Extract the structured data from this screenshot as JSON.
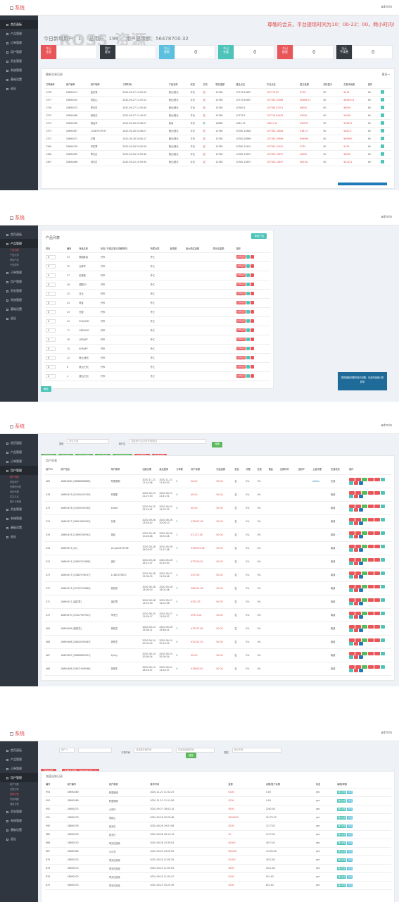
{
  "app": {
    "brand": "系统",
    "user": "admin"
  },
  "watermark": "ROSS 资源",
  "sidebar1": [
    {
      "label": "首页面板"
    },
    {
      "label": "产品管理"
    },
    {
      "label": "订单管理"
    },
    {
      "label": "用户管理"
    },
    {
      "label": "资金管理"
    },
    {
      "label": "系统管理"
    },
    {
      "label": "基础设置"
    },
    {
      "label": "退出"
    }
  ],
  "dashboard": {
    "notice": "尊敬的会员，平台提现时间为10：00-22：00，两小时内!",
    "summary": "今日新增用户：1     总用户：199     用户总余额：56478700.32",
    "stats": [
      {
        "label": "今日\n注册",
        "value": ""
      },
      {
        "label": "用户\n提交",
        "value": ""
      },
      {
        "label": "今日\n提款",
        "value": "0"
      },
      {
        "label": "今日\n充值",
        "value": "0"
      },
      {
        "label": "今日\n提现",
        "value": "0"
      },
      {
        "label": "当天\n手续费",
        "value": "0"
      }
    ],
    "panel_title": "最新交易记录",
    "more": "更多→",
    "columns": [
      "订单编号",
      "用户编号",
      "用户昵称",
      "订单时间",
      "产品名称",
      "状态",
      "方向",
      "购买金额",
      "建仓点位",
      "平仓点位",
      "盈亏金额",
      "实际盈亏",
      "交易手续费",
      "操作"
    ],
    "rows": [
      [
        "1378",
        "18690471",
        "金红秀",
        "2020-09-27 12:00:34",
        "美元/港元",
        "平仓",
        "涨",
        "10780",
        "10775.91667",
        "107770.65",
        "¥276",
        "¥0",
        "¥276",
        "¥0"
      ],
      [
        "1377",
        "18690454",
        "何民山",
        "2020-09-27 11:55:12",
        "美元/港元",
        "平仓",
        "涨",
        "10780",
        "10770.91667",
        "107780.10068",
        "¥6489.01",
        "¥0",
        "¥6489.01",
        "¥0"
      ],
      [
        "1376",
        "18690473",
        "李天白",
        "2020-09-27 11:50:40",
        "美元/港元",
        "平仓",
        "涨",
        "10780",
        "10780.5",
        "107780.03101",
        "¥6000",
        "¥0",
        "¥6000",
        "¥0"
      ],
      [
        "1375",
        "18690468",
        "张世达",
        "2020-09-27 11:45:02",
        "美元/港元",
        "平仓",
        "涨",
        "10780",
        "10779.5",
        "107779.94493",
        "¥5000",
        "¥0",
        "¥5000",
        "¥0"
      ],
      [
        "1374",
        "18690458",
        "杨运华",
        "2020-09-26 20:06:27",
        "原油",
        "平仓",
        "跌",
        "10880",
        "1081.13",
        "10811.13",
        "¥90871",
        "¥0",
        "¥90871",
        "¥0"
      ],
      [
        "1373",
        "18690467",
        "11887070537",
        "2020-09-26 20:06:27",
        "美元/港元",
        "平仓",
        "涨",
        "10780",
        "10780.14684",
        "107780.14684",
        "¥481.9",
        "¥0",
        "¥481.9",
        "¥0"
      ],
      [
        "1372",
        "18690471",
        "王明",
        "2020-09-26 20:00:17",
        "美元/港元",
        "平仓",
        "涨",
        "10780",
        "10780.29989",
        "107780.29989",
        "¥99990",
        "¥0",
        "¥99990",
        "¥0"
      ],
      [
        "1369",
        "18690476",
        "邓红秀",
        "2020-09-26 20:00:26",
        "美元/港元",
        "平仓",
        "涨",
        "10780",
        "10780.12401",
        "107780.12401",
        "¥230",
        "¥0",
        "¥230",
        "¥0"
      ],
      [
        "1368",
        "18690469",
        "李天白",
        "2020-09-26 19:59:46",
        "美元/港元",
        "平仓",
        "涨",
        "10780",
        "10780.13697",
        "107780.13697",
        "¥6000",
        "¥0",
        "¥6000",
        "¥0"
      ],
      [
        "1367",
        "18690466",
        "何天白",
        "2020-09-25 19:59:30",
        "美元/港元",
        "平仓",
        "涨",
        "10780",
        "10780.13697",
        "107780.13697",
        "¥61321",
        "¥0",
        "¥61321",
        "¥0"
      ]
    ]
  },
  "products": {
    "panel_title": "产品列表",
    "add_button": "添加产品",
    "submit_button": "确定",
    "columns": [
      "排序",
      "编号",
      "商品名称",
      "状态 (不是正常日流程的时)",
      "所属分类",
      "最低额",
      "最大购买金额",
      "周计量金额",
      "操作"
    ],
    "rows": [
      {
        "sort": "0",
        "id": "33",
        "name": "美国原油",
        "status": "开市",
        "cat": "外汇"
      },
      {
        "sort": "0",
        "id": "32",
        "name": "比特币",
        "status": "开市",
        "cat": "外汇"
      },
      {
        "sort": "0",
        "id": "27",
        "name": "伦敦镍",
        "status": "开市",
        "cat": "外汇"
      },
      {
        "sort": "0",
        "id": "26",
        "name": "德国30",
        "status": "开市",
        "cat": "外汇"
      },
      {
        "sort": "7",
        "id": "25",
        "name": "日元",
        "status": "开市",
        "cat": "外汇"
      },
      {
        "sort": "0",
        "id": "24",
        "name": "黄金",
        "status": "开市",
        "cat": "外汇"
      },
      {
        "sort": "0",
        "id": "23",
        "name": "白银",
        "status": "开市",
        "cat": "外汇"
      },
      {
        "sort": "0",
        "id": "19",
        "name": "EUR/USD",
        "status": "开市",
        "cat": "外汇"
      },
      {
        "sort": "0",
        "id": "17",
        "name": "GBP/USD",
        "status": "开市",
        "cat": "外汇"
      },
      {
        "sort": "0",
        "id": "16",
        "name": "USD/JPY",
        "status": "开市",
        "cat": "外汇"
      },
      {
        "sort": "0",
        "id": "15",
        "name": "EUR/JPY",
        "status": "开市",
        "cat": "外汇"
      },
      {
        "sort": "0",
        "id": "12",
        "name": "美元/港元",
        "status": "开市",
        "cat": "外汇"
      },
      {
        "sort": "0",
        "id": "6",
        "name": "美元/日元",
        "status": "开市",
        "cat": "外汇"
      },
      {
        "sort": "0",
        "id": "4",
        "name": "澳元/日元",
        "status": "开市",
        "cat": "外汇"
      }
    ],
    "row_actions": [
      "全部设置",
      "编",
      "删"
    ],
    "popup": "您的授权到期时间已到期，请及时续费以防影响"
  },
  "users": {
    "filter_label": "类别",
    "filter_value": "默认不选",
    "search_label": "用户名",
    "search_placeholder": "请按用户名/手机号/登录名",
    "search_button": "搜索",
    "toolbar": [
      "添加用户",
      "添加账户",
      "添加代理商",
      "今日新增",
      "今日在线用户",
      "批量删除",
      "批量拉黑"
    ],
    "panel_title": "用户列表",
    "columns": [
      "用户ID",
      "用户信息",
      "用户昵称",
      "创建日期",
      "最后登录",
      "订单数",
      "用户余额",
      "冻结金额",
      "是否",
      "代理",
      "在线",
      "佣金",
      "注册时间",
      "注册IP",
      "上级代理",
      "在线状态",
      "操作"
    ],
    "rows": [
      [
        "483",
        "18690480 [18686666666]",
        "阿里德明",
        "2020-11-21 11:10:46",
        "2020-11-21 11:50:30",
        "0",
        "¥0.00",
        "¥0.00",
        "否",
        "0%",
        "0%",
        "",
        "",
        "",
        "admin",
        "在线"
      ],
      [
        "478",
        "18690479 [15209102339]",
        "何丽丽",
        "2020-09-23 21:27:43",
        "2020-09-23 21:41:31",
        "0",
        "¥0.00",
        "¥0.00",
        "否",
        "0%",
        "0%",
        "",
        "",
        "",
        "",
        "离线"
      ],
      [
        "475",
        "18690478 [13509191939]",
        "xuelei",
        "2020-09-25 22:19:41",
        "2020-09-25 19:03:32",
        "0",
        "¥0.00",
        "¥0.00",
        "否",
        "0%",
        "0%",
        "",
        "",
        "",
        "",
        "离线"
      ],
      [
        "474",
        "18690477 [18814695595]",
        "孙燕",
        "2020-09-26 13:59:42",
        "2020-09-26 20:09:13",
        "2",
        "¥15627.06",
        "¥0.00",
        "否",
        "0%",
        "0%",
        "",
        "",
        "",
        "",
        "离线"
      ],
      [
        "419",
        "18690476 [13890193592]",
        "张民",
        "2020-09-26 10:26:48",
        "2020-09-26 19:02:48",
        "2",
        "¥1,273.18",
        "¥0.00",
        "否",
        "0%",
        "0%",
        "",
        "",
        "",
        "",
        "离线"
      ],
      [
        "416",
        "18690475 [31]",
        "xinyou0457498",
        "2020-09-28 16:29:07",
        "2020-09-28 21:27:46",
        "3",
        "¥150059.48",
        "¥0.00",
        "否",
        "0%",
        "0%",
        "",
        "",
        "",
        "",
        "离线"
      ],
      [
        "474",
        "18690474 [19897421898]",
        "金红",
        "2020-09-28 16:13:27",
        "2020-09-28 20:29:50",
        "1",
        "¥77910.50",
        "¥0.00",
        "否",
        "0%",
        "0%",
        "",
        "",
        "",
        "",
        "离线"
      ],
      [
        "473",
        "18690473 [13887078537]",
        "11887078537",
        "2020-09-28 12:08:15",
        "2020-09-27 11:28:46",
        "3",
        "¥47155",
        "¥0.00",
        "否",
        "0%",
        "0%",
        "",
        "",
        "",
        "",
        "离线"
      ],
      [
        "472",
        "18690472 [15150720689]",
        "张彤彤",
        "2020-09-28 14:09:30",
        "2020-09-28 19:02:46",
        "2",
        "¥62091.08",
        "¥0.00",
        "否",
        "0%",
        "0%",
        "",
        "",
        "",
        "",
        "离线"
      ],
      [
        "471",
        "18690471 [金红秀]",
        "金红秀",
        "2020-09-28 12:55:30",
        "2020-09-27 12:01:06",
        "5",
        "¥331.03",
        "¥0.00",
        "否",
        "0%",
        "0%",
        "",
        "",
        "",
        "",
        "离线"
      ],
      [
        "470",
        "18690470 [15327907503]",
        "李天白",
        "2020-09-25 11:59:17",
        "2020-09-27 11:50:57",
        "3",
        "¥5370.02",
        "¥0.00",
        "否",
        "0%",
        "0%",
        "",
        "",
        "",
        "",
        "离线"
      ],
      [
        "469",
        "18690469 [张柏芝]",
        "张柏芝",
        "2020-09-24 19:38:11",
        "2020-09-26 19:48:41",
        "2",
        "¥13337.85",
        "¥0.00",
        "否",
        "0%",
        "0%",
        "",
        "",
        "",
        "",
        "离线"
      ],
      [
        "468",
        "18690468 [18843493083]",
        "张柏芝",
        "2020-09-24 20:09:34",
        "2020-09-24 20:19:34",
        "0",
        "¥31341.30",
        "¥0.00",
        "否",
        "0%",
        "0%",
        "",
        "",
        "",
        "",
        "离线"
      ],
      [
        "467",
        "18690467 [18689809901]",
        "liyilxy",
        "2020-09-24 20:09:34",
        "2020-09-24 20:09:34",
        "0",
        "¥0.00",
        "¥0.00",
        "否",
        "0%",
        "0%",
        "",
        "",
        "",
        "",
        "离线"
      ],
      [
        "466",
        "18690466 [19871909096]",
        "张德宇",
        "2020-09-19 18:16:57",
        "2020-09-21 11:20:57",
        "0",
        "¥19843.81",
        "¥0.00",
        "否",
        "0%",
        "0%",
        "",
        "",
        "",
        "",
        "离线"
      ]
    ],
    "pages": [
      "«",
      "1",
      "2",
      "3",
      "4",
      "5",
      "6",
      "7",
      "8",
      "...",
      "13",
      "14",
      "»"
    ]
  },
  "funds": {
    "f1_label": "用户",
    "f1_value": "用户 ▾",
    "f2_label": "订单时间",
    "f2_placeholder": "请选择开始时间",
    "f3_placeholder": "请选择结束时间",
    "f4_label": "类型",
    "f4_value": "默认不选",
    "search_button": "搜索",
    "buttons": [
      "导出记录",
      "充值总金额：263446752.12"
    ],
    "panel_title": "充值出账记录",
    "columns": [
      "编号",
      "用户编号",
      "用户昵称",
      "操作时间",
      "金额",
      "余额/账户余额",
      "状态",
      "编辑/审核"
    ],
    "rows": [
      [
        "994",
        "18690480",
        "阿里德明",
        "2020-11-21 11:52:23",
        "¥100",
        "0.00",
        "yes"
      ],
      [
        "993",
        "18690480",
        "阿里德明",
        "2020-11-21 11:51:56",
        "¥100",
        "0.00",
        "yes"
      ],
      [
        "992",
        "18690475",
        "小刘仔",
        "2020-09-27 18:02:14",
        "¥300",
        "2262.00",
        "yes"
      ],
      [
        "991",
        "18690479",
        "何民山",
        "2020-09-26 20:03:48",
        "¥250000",
        "31172.52",
        "yes"
      ],
      [
        "990",
        "18690476",
        "张天白",
        "2020-09-26 19:07:06",
        "¥100",
        "1177.02",
        "yes"
      ],
      [
        "989",
        "18690476",
        "张天白",
        "2020-09-26 16:14:13",
        "¥1",
        "1177.02",
        "yes"
      ],
      [
        "988",
        "18690470",
        "李天白招待",
        "2020-09-26 15:35:54",
        "¥2000",
        "4077.02",
        "yes"
      ],
      [
        "987",
        "18690469",
        "小小刘",
        "2020-09-25 19:29:09",
        "¥25000",
        "11155.60",
        "yes"
      ],
      [
        "879",
        "18690474",
        "李天白招待",
        "2020-09-25 11:05:29",
        "¥1000",
        "2011.62",
        "yes"
      ],
      [
        "878",
        "18690473",
        "李天白招待",
        "2020-09-25 11:05:09",
        "¥200",
        "1011.62",
        "yes"
      ],
      [
        "876",
        "18690470",
        "李天白招待",
        "2020-09-25 11:03:47",
        "¥100",
        "911.62",
        "yes"
      ],
      [
        "875",
        "18690470",
        "李天白招待",
        "2020-09-25 10:22:39",
        "¥100",
        "811.62",
        "yes"
      ]
    ],
    "actions": [
      "确认充值",
      "驳回"
    ]
  },
  "colors": {
    "accent": "#e9565a",
    "green": "#5cb85c",
    "teal": "#4ec4b8",
    "blue": "#1e7bb8",
    "sidebar": "#2f3640"
  }
}
